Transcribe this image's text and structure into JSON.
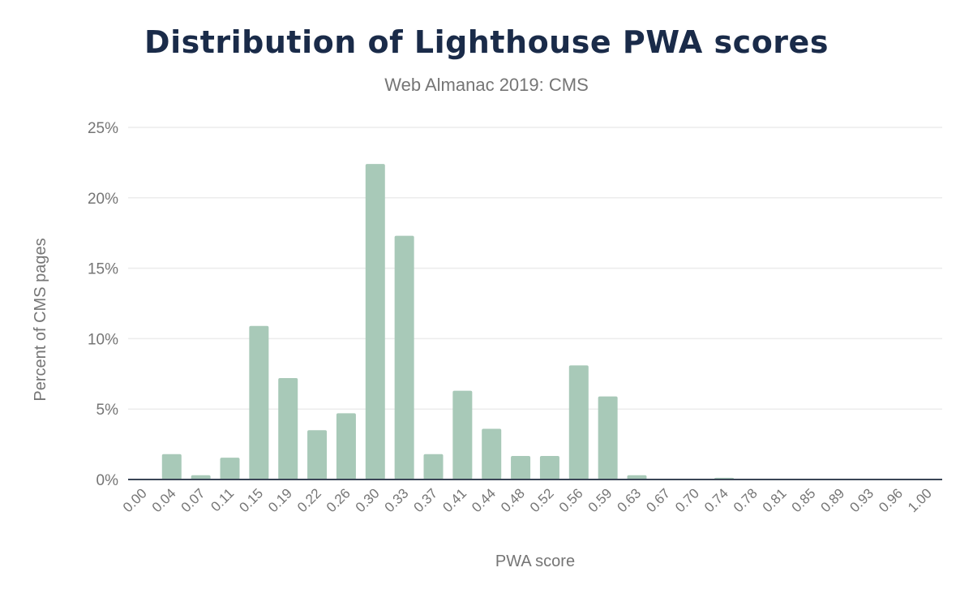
{
  "chart_data": {
    "type": "bar",
    "title": "Distribution of Lighthouse PWA scores",
    "subtitle": "Web Almanac 2019: CMS",
    "xlabel": "PWA score",
    "ylabel": "Percent of CMS pages",
    "ylim": [
      0,
      25
    ],
    "yticks": [
      "0%",
      "5%",
      "10%",
      "15%",
      "20%",
      "25%"
    ],
    "grid": true,
    "bar_color": "#a8c9b8",
    "categories": [
      "0.00",
      "0.04",
      "0.07",
      "0.11",
      "0.15",
      "0.19",
      "0.22",
      "0.26",
      "0.30",
      "0.33",
      "0.37",
      "0.41",
      "0.44",
      "0.48",
      "0.52",
      "0.56",
      "0.59",
      "0.63",
      "0.67",
      "0.70",
      "0.74",
      "0.78",
      "0.81",
      "0.85",
      "0.89",
      "0.93",
      "0.96",
      "1.00"
    ],
    "values": [
      0,
      1.8,
      0.3,
      1.55,
      10.9,
      7.2,
      3.5,
      4.7,
      22.4,
      17.3,
      1.8,
      6.3,
      3.6,
      1.67,
      1.67,
      8.1,
      5.9,
      0.3,
      0.02,
      0.02,
      0.12,
      0,
      0,
      0,
      0,
      0,
      0,
      0.02
    ]
  }
}
